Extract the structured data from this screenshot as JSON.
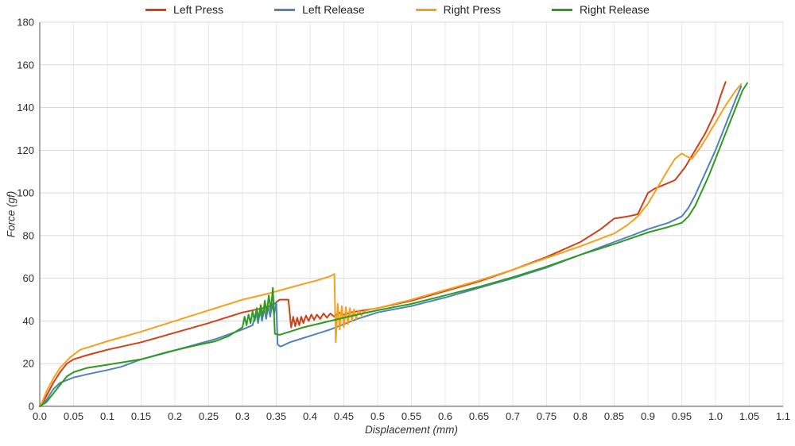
{
  "chart_data": {
    "type": "line",
    "title": "",
    "xlabel": "Displacement (mm)",
    "ylabel": "Force (gf)",
    "xlim": [
      0,
      1.1
    ],
    "ylim": [
      0,
      180
    ],
    "grid": true,
    "legend_position": "top",
    "colors": {
      "axis": "#555555",
      "grid_h": "#d9d9d9",
      "grid_v": "#e8e8e8",
      "text": "#2d2d2d"
    },
    "xticks": [
      0,
      0.05,
      0.1,
      0.15,
      0.2,
      0.25,
      0.3,
      0.35,
      0.4,
      0.45,
      0.5,
      0.55,
      0.6,
      0.65,
      0.7,
      0.75,
      0.8,
      0.85,
      0.9,
      0.95,
      1.0,
      1.05,
      1.1
    ],
    "xtick_labels": [
      "0.0",
      "0.05",
      "0.1",
      "0.15",
      "0.2",
      "0.25",
      "0.3",
      "0.35",
      "0.4",
      "0.45",
      "0.5",
      "0.55",
      "0.6",
      "0.65",
      "0.7",
      "0.75",
      "0.8",
      "0.85",
      "0.9",
      "0.95",
      "1.0",
      "1.05",
      "1.1"
    ],
    "yticks": [
      0,
      20,
      40,
      60,
      80,
      100,
      120,
      140,
      160,
      180
    ],
    "series": [
      {
        "name": "Left Press",
        "color": "#d04016",
        "points": [
          [
            0,
            0
          ],
          [
            0.005,
            2
          ],
          [
            0.01,
            5
          ],
          [
            0.02,
            11
          ],
          [
            0.03,
            16
          ],
          [
            0.04,
            20
          ],
          [
            0.05,
            22
          ],
          [
            0.07,
            24
          ],
          [
            0.1,
            26.5
          ],
          [
            0.15,
            30
          ],
          [
            0.2,
            34.5
          ],
          [
            0.25,
            39
          ],
          [
            0.3,
            44
          ],
          [
            0.33,
            46
          ],
          [
            0.345,
            47.5
          ],
          [
            0.355,
            50
          ],
          [
            0.368,
            50
          ],
          [
            0.372,
            37
          ],
          [
            0.375,
            42
          ],
          [
            0.378,
            37.5
          ],
          [
            0.381,
            41.5
          ],
          [
            0.384,
            38
          ],
          [
            0.387,
            42
          ],
          [
            0.39,
            39
          ],
          [
            0.394,
            42.5
          ],
          [
            0.398,
            40
          ],
          [
            0.402,
            43
          ],
          [
            0.406,
            40.5
          ],
          [
            0.41,
            43
          ],
          [
            0.415,
            41
          ],
          [
            0.42,
            43.5
          ],
          [
            0.425,
            41.5
          ],
          [
            0.43,
            43.5
          ],
          [
            0.436,
            42
          ],
          [
            0.442,
            44
          ],
          [
            0.45,
            43
          ],
          [
            0.46,
            44
          ],
          [
            0.47,
            44.5
          ],
          [
            0.48,
            45
          ],
          [
            0.5,
            46
          ],
          [
            0.55,
            49.5
          ],
          [
            0.6,
            54
          ],
          [
            0.65,
            58.5
          ],
          [
            0.7,
            64
          ],
          [
            0.75,
            70
          ],
          [
            0.8,
            77
          ],
          [
            0.83,
            83
          ],
          [
            0.85,
            88
          ],
          [
            0.87,
            89
          ],
          [
            0.885,
            90
          ],
          [
            0.9,
            100
          ],
          [
            0.91,
            102
          ],
          [
            0.925,
            104
          ],
          [
            0.94,
            106
          ],
          [
            0.955,
            112
          ],
          [
            0.97,
            120
          ],
          [
            0.985,
            128
          ],
          [
            1.0,
            138
          ],
          [
            1.008,
            146
          ],
          [
            1.015,
            152
          ]
        ]
      },
      {
        "name": "Left Release",
        "color": "#5182ba",
        "points": [
          [
            0,
            0
          ],
          [
            0.01,
            3
          ],
          [
            0.02,
            8
          ],
          [
            0.03,
            11
          ],
          [
            0.05,
            13.5
          ],
          [
            0.07,
            15
          ],
          [
            0.1,
            17
          ],
          [
            0.12,
            18.5
          ],
          [
            0.15,
            22
          ],
          [
            0.18,
            24.5
          ],
          [
            0.22,
            28
          ],
          [
            0.26,
            31.5
          ],
          [
            0.3,
            36
          ],
          [
            0.315,
            38
          ],
          [
            0.32,
            44
          ],
          [
            0.323,
            39
          ],
          [
            0.326,
            45
          ],
          [
            0.329,
            40
          ],
          [
            0.332,
            46
          ],
          [
            0.335,
            41
          ],
          [
            0.338,
            47
          ],
          [
            0.341,
            42
          ],
          [
            0.344,
            48
          ],
          [
            0.347,
            43
          ],
          [
            0.35,
            49
          ],
          [
            0.352,
            29
          ],
          [
            0.356,
            28
          ],
          [
            0.36,
            28.5
          ],
          [
            0.37,
            30
          ],
          [
            0.39,
            32
          ],
          [
            0.41,
            34
          ],
          [
            0.43,
            36
          ],
          [
            0.45,
            38.5
          ],
          [
            0.47,
            41
          ],
          [
            0.49,
            43
          ],
          [
            0.5,
            44
          ],
          [
            0.55,
            47
          ],
          [
            0.6,
            51
          ],
          [
            0.65,
            55.5
          ],
          [
            0.7,
            60
          ],
          [
            0.75,
            65
          ],
          [
            0.8,
            71
          ],
          [
            0.85,
            77
          ],
          [
            0.88,
            80.5
          ],
          [
            0.9,
            83
          ],
          [
            0.93,
            86
          ],
          [
            0.95,
            89
          ],
          [
            0.96,
            93
          ],
          [
            0.97,
            99
          ],
          [
            0.98,
            106
          ],
          [
            0.99,
            113
          ],
          [
            1.0,
            120
          ],
          [
            1.01,
            128
          ],
          [
            1.02,
            136
          ],
          [
            1.03,
            144
          ],
          [
            1.038,
            150
          ]
        ]
      },
      {
        "name": "Right Press",
        "color": "#f6a01b",
        "points": [
          [
            0,
            0
          ],
          [
            0.005,
            3
          ],
          [
            0.01,
            7
          ],
          [
            0.02,
            13
          ],
          [
            0.03,
            18
          ],
          [
            0.045,
            23
          ],
          [
            0.06,
            26.5
          ],
          [
            0.075,
            28
          ],
          [
            0.1,
            30.5
          ],
          [
            0.15,
            35
          ],
          [
            0.2,
            40
          ],
          [
            0.25,
            45
          ],
          [
            0.3,
            50
          ],
          [
            0.34,
            53
          ],
          [
            0.38,
            56.5
          ],
          [
            0.41,
            59
          ],
          [
            0.43,
            61
          ],
          [
            0.436,
            62
          ],
          [
            0.438,
            30
          ],
          [
            0.441,
            48
          ],
          [
            0.444,
            36
          ],
          [
            0.447,
            47
          ],
          [
            0.45,
            37
          ],
          [
            0.453,
            46.5
          ],
          [
            0.456,
            38.5
          ],
          [
            0.459,
            46
          ],
          [
            0.462,
            40
          ],
          [
            0.465,
            45.5
          ],
          [
            0.468,
            41
          ],
          [
            0.472,
            45
          ],
          [
            0.476,
            42.5
          ],
          [
            0.48,
            44.5
          ],
          [
            0.49,
            45.5
          ],
          [
            0.5,
            46
          ],
          [
            0.55,
            50
          ],
          [
            0.6,
            54.5
          ],
          [
            0.65,
            59
          ],
          [
            0.7,
            64
          ],
          [
            0.75,
            69.5
          ],
          [
            0.8,
            75
          ],
          [
            0.85,
            81
          ],
          [
            0.87,
            85
          ],
          [
            0.885,
            89
          ],
          [
            0.9,
            95
          ],
          [
            0.915,
            103
          ],
          [
            0.93,
            111
          ],
          [
            0.94,
            116
          ],
          [
            0.95,
            118.5
          ],
          [
            0.958,
            117
          ],
          [
            0.965,
            116
          ],
          [
            0.975,
            120
          ],
          [
            0.985,
            125
          ],
          [
            1.0,
            133
          ],
          [
            1.015,
            141
          ],
          [
            1.03,
            148
          ],
          [
            1.038,
            151
          ]
        ]
      },
      {
        "name": "Right Release",
        "color": "#2e9b1e",
        "points": [
          [
            0,
            0
          ],
          [
            0.01,
            2
          ],
          [
            0.02,
            6
          ],
          [
            0.03,
            10
          ],
          [
            0.04,
            14
          ],
          [
            0.05,
            16
          ],
          [
            0.07,
            18
          ],
          [
            0.1,
            19.5
          ],
          [
            0.13,
            21
          ],
          [
            0.15,
            22
          ],
          [
            0.19,
            25.5
          ],
          [
            0.23,
            28.5
          ],
          [
            0.26,
            30.5
          ],
          [
            0.28,
            33
          ],
          [
            0.295,
            36
          ],
          [
            0.3,
            37
          ],
          [
            0.303,
            42
          ],
          [
            0.306,
            38
          ],
          [
            0.309,
            43
          ],
          [
            0.312,
            39
          ],
          [
            0.315,
            44.5
          ],
          [
            0.318,
            40
          ],
          [
            0.321,
            46
          ],
          [
            0.324,
            41
          ],
          [
            0.327,
            47.5
          ],
          [
            0.33,
            42
          ],
          [
            0.333,
            49.5
          ],
          [
            0.336,
            43.5
          ],
          [
            0.339,
            52
          ],
          [
            0.342,
            45
          ],
          [
            0.345,
            55.5
          ],
          [
            0.348,
            34
          ],
          [
            0.355,
            33.5
          ],
          [
            0.37,
            35
          ],
          [
            0.39,
            37
          ],
          [
            0.41,
            38.5
          ],
          [
            0.43,
            40
          ],
          [
            0.45,
            41.5
          ],
          [
            0.47,
            43
          ],
          [
            0.5,
            45
          ],
          [
            0.55,
            48
          ],
          [
            0.6,
            52
          ],
          [
            0.65,
            56
          ],
          [
            0.7,
            60.5
          ],
          [
            0.75,
            65.5
          ],
          [
            0.8,
            71
          ],
          [
            0.85,
            76
          ],
          [
            0.9,
            81.5
          ],
          [
            0.93,
            84
          ],
          [
            0.95,
            86
          ],
          [
            0.96,
            89
          ],
          [
            0.97,
            94
          ],
          [
            0.98,
            101
          ],
          [
            0.99,
            108
          ],
          [
            1.0,
            116
          ],
          [
            1.01,
            124
          ],
          [
            1.02,
            132
          ],
          [
            1.03,
            140
          ],
          [
            1.04,
            148
          ],
          [
            1.047,
            151.5
          ]
        ]
      }
    ]
  }
}
